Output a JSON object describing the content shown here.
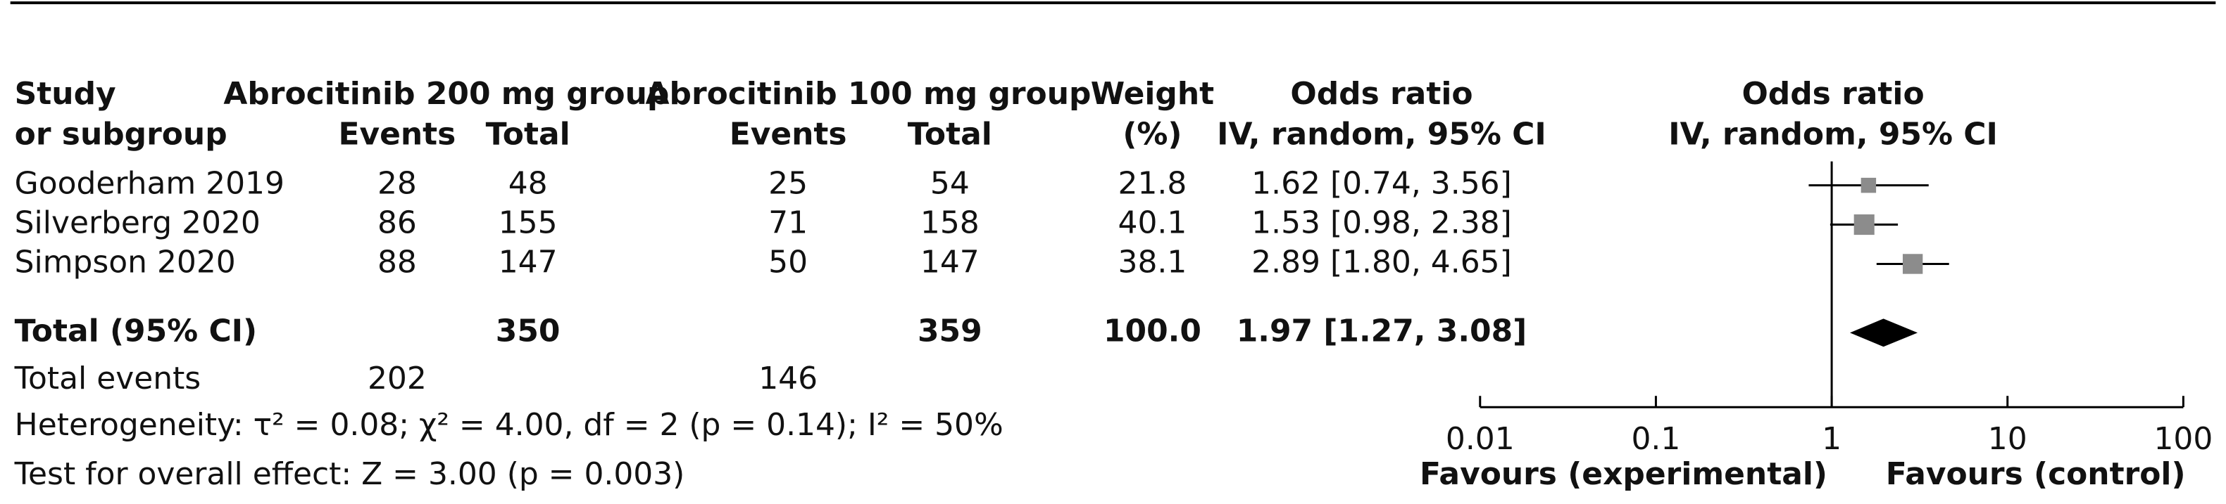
{
  "chart_data": {
    "type": "forest",
    "headers": {
      "study": [
        "Study",
        "or subgroup"
      ],
      "group1": "Abrocitinib 200 mg group",
      "group2": "Abrocitinib 100 mg group",
      "events1": "Events",
      "total1": "Total",
      "events2": "Events",
      "total2": "Total",
      "weight": [
        "Weight",
        "(%)"
      ],
      "or_table": [
        "Odds ratio",
        "IV, random, 95% CI"
      ],
      "or_plot": [
        "Odds ratio",
        "IV, random, 95% CI"
      ]
    },
    "studies": [
      {
        "name": "Gooderham 2019",
        "events1": 28,
        "total1": 48,
        "events2": 25,
        "total2": 54,
        "weight": 21.8,
        "or": 1.62,
        "ci_low": 0.74,
        "ci_high": 3.56,
        "or_label": "1.62 [0.74, 3.56]"
      },
      {
        "name": "Silverberg 2020",
        "events1": 86,
        "total1": 155,
        "events2": 71,
        "total2": 158,
        "weight": 40.1,
        "or": 1.53,
        "ci_low": 0.98,
        "ci_high": 2.38,
        "or_label": "1.53 [0.98, 2.38]"
      },
      {
        "name": "Simpson 2020",
        "events1": 88,
        "total1": 147,
        "events2": 50,
        "total2": 147,
        "weight": 38.1,
        "or": 2.89,
        "ci_low": 1.8,
        "ci_high": 4.65,
        "or_label": "2.89 [1.80, 4.65]"
      }
    ],
    "total": {
      "name": "Total (95% CI)",
      "total1": 350,
      "total2": 359,
      "weight": "100.0",
      "or": 1.97,
      "ci_low": 1.27,
      "ci_high": 3.08,
      "or_label": "1.97 [1.27, 3.08]"
    },
    "total_events": {
      "name": "Total events",
      "events1": 202,
      "events2": 146
    },
    "heterogeneity": "Heterogeneity: τ² = 0.08; χ² = 4.00, df = 2 (p = 0.14); I² = 50%",
    "overall_effect": "Test for overall effect: Z = 3.00 (p = 0.003)",
    "xlim": [
      0.01,
      100
    ],
    "xticks": [
      0.01,
      0.1,
      1,
      10,
      100
    ],
    "log_x": true,
    "favours_left": "Favours (experimental)",
    "favours_right": "Favours (control)",
    "marker_color": "#8c8c8c",
    "diamond_color": "#000000"
  }
}
